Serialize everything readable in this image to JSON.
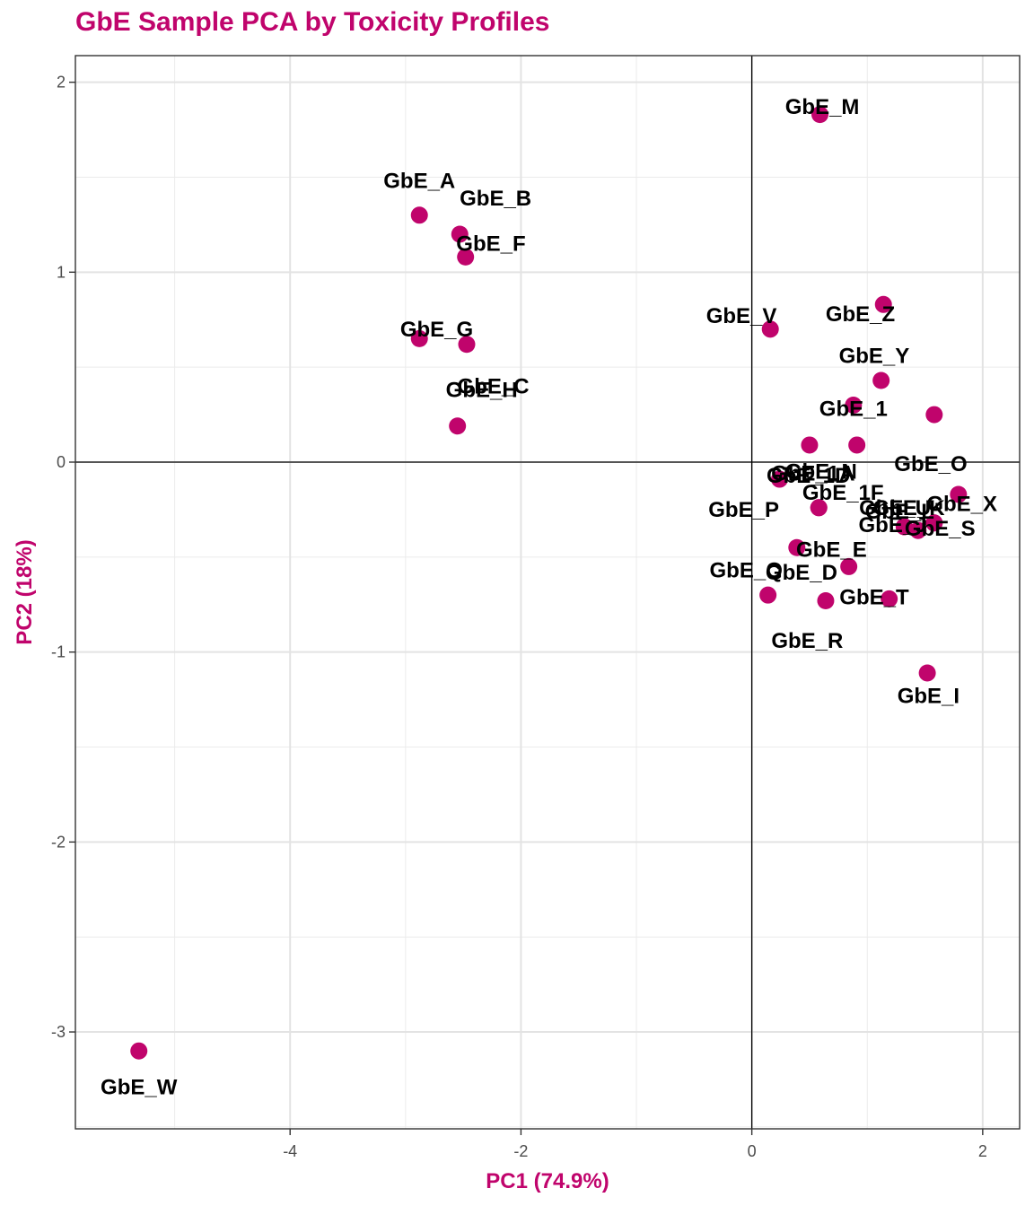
{
  "chart_data": {
    "type": "scatter",
    "title": "GbE Sample PCA by Toxicity Profiles",
    "xlabel": "PC1 (74.9%)",
    "ylabel": "PC2 (18%)",
    "xlim": [
      -5.86,
      2.32
    ],
    "ylim": [
      -3.51,
      2.14
    ],
    "x_ticks": [
      -4,
      -2,
      0,
      2
    ],
    "y_ticks": [
      -3,
      -2,
      -1,
      0,
      1,
      2
    ],
    "x_tick_labels": [
      "-4",
      "-2",
      "0",
      "2"
    ],
    "y_tick_labels": [
      "-3",
      "-2",
      "-1",
      "0",
      "1",
      "2"
    ],
    "grid": true,
    "reference_lines": {
      "x": 0,
      "y": 0
    },
    "point_color": "#c0046c",
    "title_color": "#c0046c",
    "points": [
      {
        "label": "GbE_A",
        "x": -2.88,
        "y": 1.3,
        "lx": -2.88,
        "ly": 1.48
      },
      {
        "label": "GbE_B",
        "x": -2.53,
        "y": 1.2,
        "lx": -2.22,
        "ly": 1.39
      },
      {
        "label": "GbE_F",
        "x": -2.48,
        "y": 1.08,
        "lx": -2.26,
        "ly": 1.15
      },
      {
        "label": "GbE_G",
        "x": -2.88,
        "y": 0.65,
        "lx": -2.73,
        "ly": 0.7
      },
      {
        "label": "GbE_C",
        "x": -2.47,
        "y": 0.62,
        "lx": -2.24,
        "ly": 0.4
      },
      {
        "label": "GbE_H",
        "x": -2.55,
        "y": 0.19,
        "lx": -2.34,
        "ly": 0.38
      },
      {
        "label": "GbE_M",
        "x": 0.59,
        "y": 1.83,
        "lx": 0.61,
        "ly": 1.87
      },
      {
        "label": "GbE_V",
        "x": 0.16,
        "y": 0.7,
        "lx": -0.09,
        "ly": 0.77
      },
      {
        "label": "GbE_Z",
        "x": 1.14,
        "y": 0.83,
        "lx": 0.94,
        "ly": 0.78
      },
      {
        "label": "GbE_Y",
        "x": 1.12,
        "y": 0.43,
        "lx": 1.06,
        "ly": 0.56
      },
      {
        "label": "GbE_1",
        "x": 0.88,
        "y": 0.3,
        "lx": 0.88,
        "ly": 0.28
      },
      {
        "label": "GbE_O",
        "x": 1.58,
        "y": 0.25,
        "lx": 1.55,
        "ly": -0.01
      },
      {
        "label": "GbE_N",
        "x": 0.91,
        "y": 0.09,
        "lx": 0.6,
        "ly": -0.05
      },
      {
        "label": "GbE_1A",
        "x": 0.5,
        "y": 0.09,
        "lx": 0.53,
        "ly": -0.06
      },
      {
        "label": "GbE_1D",
        "x": 0.24,
        "y": -0.09,
        "lx": 0.49,
        "ly": -0.07
      },
      {
        "label": "GbE_1F",
        "x": 0.58,
        "y": -0.24,
        "lx": 0.79,
        "ly": -0.16
      },
      {
        "label": "GbE_P",
        "x": 0.58,
        "y": -0.24,
        "lx": -0.07,
        "ly": -0.25
      },
      {
        "label": "GbE_X",
        "x": 1.79,
        "y": -0.17,
        "lx": 1.82,
        "ly": -0.22
      },
      {
        "label": "GbE_U",
        "x": 1.58,
        "y": -0.32,
        "lx": 1.24,
        "ly": -0.24
      },
      {
        "label": "GbE_K",
        "x": 1.44,
        "y": -0.36,
        "lx": 1.36,
        "ly": -0.24
      },
      {
        "label": "GbE_L",
        "x": 1.32,
        "y": -0.34,
        "lx": 1.28,
        "ly": -0.26
      },
      {
        "label": "GbE_J",
        "x": 1.32,
        "y": -0.34,
        "lx": 1.22,
        "ly": -0.33
      },
      {
        "label": "GbE_S",
        "x": 1.58,
        "y": -0.32,
        "lx": 1.63,
        "ly": -0.35
      },
      {
        "label": "GbE_E",
        "x": 0.39,
        "y": -0.45,
        "lx": 0.69,
        "ly": -0.46
      },
      {
        "label": "GbE_D",
        "x": 0.84,
        "y": -0.55,
        "lx": 0.43,
        "ly": -0.58
      },
      {
        "label": "GbE_Q",
        "x": 0.14,
        "y": -0.7,
        "lx": -0.05,
        "ly": -0.57
      },
      {
        "label": "GbE_R",
        "x": 0.64,
        "y": -0.73,
        "lx": 0.48,
        "ly": -0.94
      },
      {
        "label": "GbE_T",
        "x": 1.19,
        "y": -0.72,
        "lx": 1.06,
        "ly": -0.71
      },
      {
        "label": "GbE_I",
        "x": 1.52,
        "y": -1.11,
        "lx": 1.53,
        "ly": -1.23
      },
      {
        "label": "GbE_W",
        "x": -5.31,
        "y": -3.1,
        "lx": -5.31,
        "ly": -3.29
      }
    ]
  }
}
